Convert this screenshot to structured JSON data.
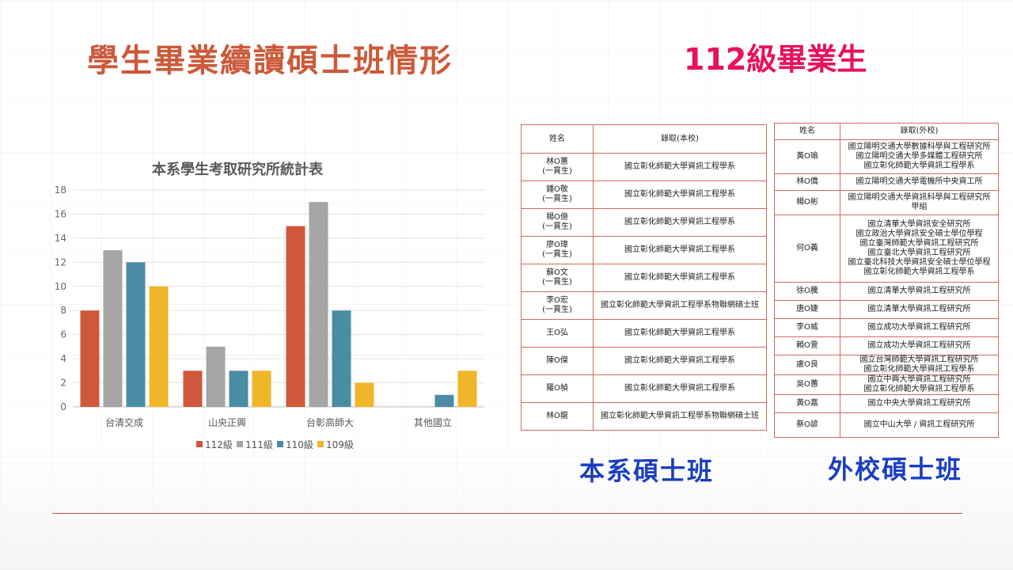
{
  "slide": {
    "title": "學生畢業續讀碩士班情形",
    "subtitle": "112級畢業生"
  },
  "chart_data": {
    "type": "bar",
    "title": "本系學生考取研究所統計表",
    "categories": [
      "台清交成",
      "山央正興",
      "台彰高師大",
      "其他國立"
    ],
    "series": [
      {
        "name": "112級",
        "color": "#d1573a",
        "values": [
          8,
          3,
          15,
          0
        ]
      },
      {
        "name": "111級",
        "color": "#a5a5a5",
        "values": [
          13,
          5,
          17,
          0
        ]
      },
      {
        "name": "110級",
        "color": "#4a8ca4",
        "values": [
          12,
          3,
          8,
          1
        ]
      },
      {
        "name": "109級",
        "color": "#f0b62a",
        "values": [
          10,
          3,
          2,
          3
        ]
      }
    ],
    "ylim": [
      0,
      18
    ],
    "yticks": [
      "0",
      "2",
      "4",
      "6",
      "8",
      "10",
      "12",
      "14",
      "16",
      "18"
    ],
    "grid": true,
    "legend": "bottom"
  },
  "home_table": {
    "headers": [
      "姓名",
      "錄取(本校)"
    ],
    "rows": [
      {
        "name": "林O蕙\n(一貫生)",
        "school": "國立彰化師範大學資訊工程學系"
      },
      {
        "name": "鍾O敬\n(一貫生)",
        "school": "國立彰化師範大學資訊工程學系"
      },
      {
        "name": "楊O億\n(一貫生)",
        "school": "國立彰化師範大學資訊工程學系"
      },
      {
        "name": "廖O瑋\n(一貫生)",
        "school": "國立彰化師範大學資訊工程學系"
      },
      {
        "name": "蘇O文\n(一貫生)",
        "school": "國立彰化師範大學資訊工程學系"
      },
      {
        "name": "李O宏\n(一貫生)",
        "school": "國立彰化師範大學資訊工程學系物聯網碩士班"
      },
      {
        "name": "王O弘",
        "school": "國立彰化師範大學資訊工程學系"
      },
      {
        "name": "陳O傑",
        "school": "國立彰化師範大學資訊工程學系"
      },
      {
        "name": "羅O楨",
        "school": "國立彰化師範大學資訊工程學系"
      },
      {
        "name": "林O龍",
        "school": "國立彰化師範大學資訊工程學系物聯網碩士班"
      }
    ]
  },
  "outside_table": {
    "headers": [
      "姓名",
      "錄取(外校)"
    ],
    "rows": [
      {
        "name": "黃O瑜",
        "school": "國立陽明交通大學數據科學與工程研究所\n國立陽明交通大學多媒體工程研究所\n國立彰化師範大學資訊工程學系"
      },
      {
        "name": "林O僑",
        "school": "國立陽明交通大學電機所中央資工所"
      },
      {
        "name": "楊O彬",
        "school": "國立陽明交通大學資訊科學與工程研究所\n甲組"
      },
      {
        "name": "何O義",
        "school": "國立清華大學資訊安全研究所\n國立政治大學資訊安全碩士學位學程\n國立臺灣師範大學資訊工程研究所\n國立臺北大學資訊工程研究所\n國立臺北科技大學資訊安全碩士學位學程\n國立彰化師範大學資訊工程學系"
      },
      {
        "name": "徐O騰",
        "school": "國立清華大學資訊工程研究所"
      },
      {
        "name": "唐O婕",
        "school": "國立清華大學資訊工程研究所"
      },
      {
        "name": "李O威",
        "school": "國立成功大學資訊工程研究所"
      },
      {
        "name": "賴O萱",
        "school": "國立成功大學資訊工程研究所"
      },
      {
        "name": "盧O良",
        "school": "國立台灣師範大學資訊工程研究所\n國立彰化師範大學資訊工程學系"
      },
      {
        "name": "吳O蕙",
        "school": "國立中興大學資訊工程研究所\n國立彰化師範大學資訊工程學系"
      },
      {
        "name": "黃O嘉",
        "school": "國立中央大學資訊工程研究所"
      },
      {
        "name": "蔡O諺",
        "school": "國立中山大學 / 資訊工程研究所"
      }
    ]
  },
  "captions": {
    "home": "本系碩士班",
    "outside": "外校碩士班"
  },
  "colors": {
    "title": "#cc5a3a",
    "subtitle": "#e8115d",
    "caption": "#1a3fbf",
    "table_border": "#d06b5b"
  }
}
